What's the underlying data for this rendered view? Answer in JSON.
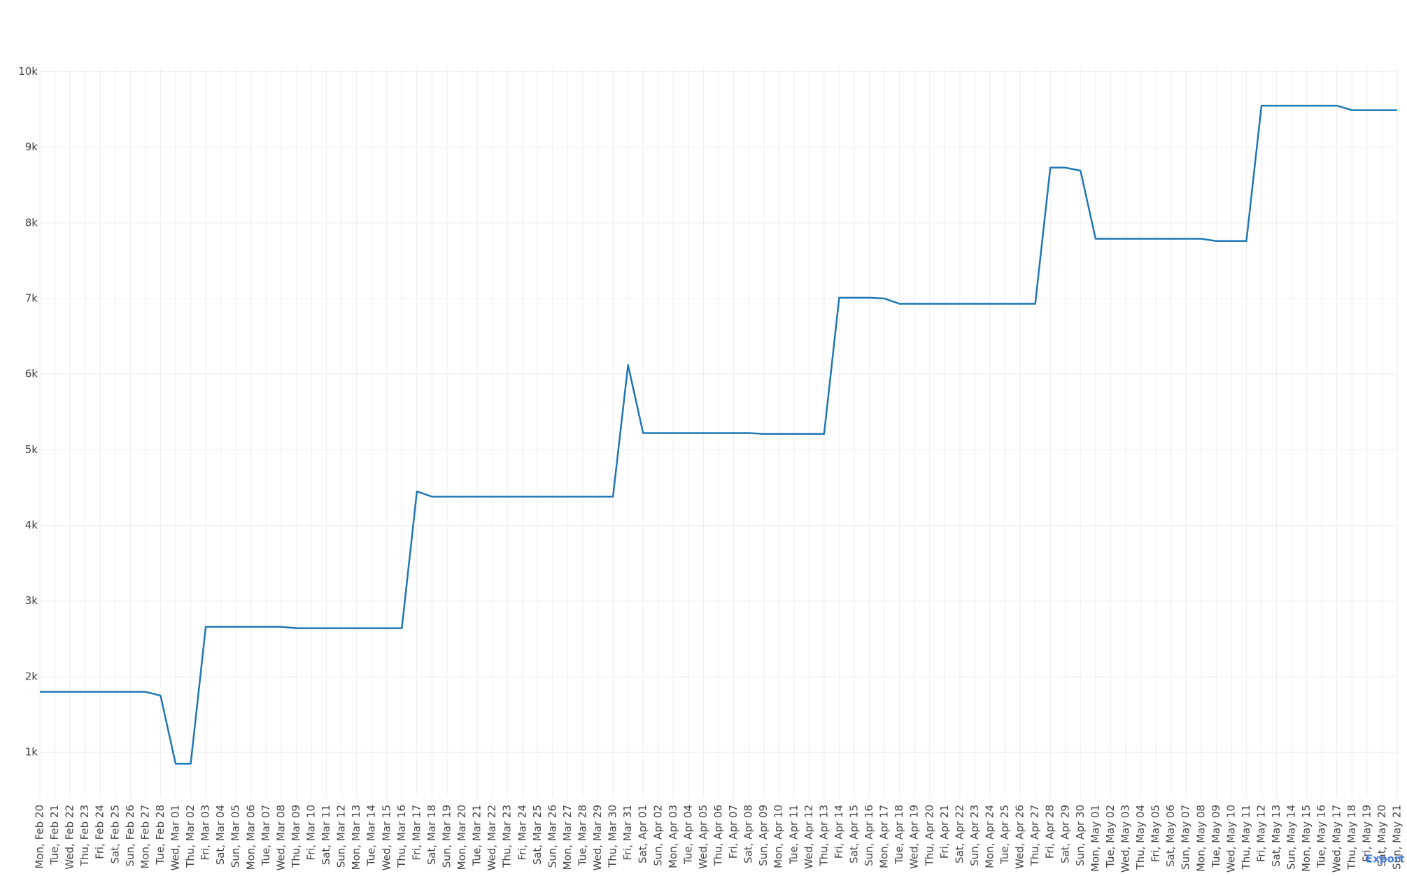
{
  "chart_data": {
    "type": "line",
    "categories": [
      "Mon, Feb 20",
      "Tue, Feb 21",
      "Wed, Feb 22",
      "Thu, Feb 23",
      "Fri, Feb 24",
      "Sat, Feb 25",
      "Sun, Feb 26",
      "Mon, Feb 27",
      "Tue, Feb 28",
      "Wed, Mar 01",
      "Thu, Mar 02",
      "Fri, Mar 03",
      "Sat, Mar 04",
      "Sun, Mar 05",
      "Mon, Mar 06",
      "Tue, Mar 07",
      "Wed, Mar 08",
      "Thu, Mar 09",
      "Fri, Mar 10",
      "Sat, Mar 11",
      "Sun, Mar 12",
      "Mon, Mar 13",
      "Tue, Mar 14",
      "Wed, Mar 15",
      "Thu, Mar 16",
      "Fri, Mar 17",
      "Sat, Mar 18",
      "Sun, Mar 19",
      "Mon, Mar 20",
      "Tue, Mar 21",
      "Wed, Mar 22",
      "Thu, Mar 23",
      "Fri, Mar 24",
      "Sat, Mar 25",
      "Sun, Mar 26",
      "Mon, Mar 27",
      "Tue, Mar 28",
      "Wed, Mar 29",
      "Thu, Mar 30",
      "Fri, Mar 31",
      "Sat, Apr 01",
      "Sun, Apr 02",
      "Mon, Apr 03",
      "Tue, Apr 04",
      "Wed, Apr 05",
      "Thu, Apr 06",
      "Fri, Apr 07",
      "Sat, Apr 08",
      "Sun, Apr 09",
      "Mon, Apr 10",
      "Tue, Apr 11",
      "Wed, Apr 12",
      "Thu, Apr 13",
      "Fri, Apr 14",
      "Sat, Apr 15",
      "Sun, Apr 16",
      "Mon, Apr 17",
      "Tue, Apr 18",
      "Wed, Apr 19",
      "Thu, Apr 20",
      "Fri, Apr 21",
      "Sat, Apr 22",
      "Sun, Apr 23",
      "Mon, Apr 24",
      "Tue, Apr 25",
      "Wed, Apr 26",
      "Thu, Apr 27",
      "Fri, Apr 28",
      "Sat, Apr 29",
      "Sun, Apr 30",
      "Mon, May 01",
      "Tue, May 02",
      "Wed, May 03",
      "Thu, May 04",
      "Fri, May 05",
      "Sat, May 06",
      "Sun, May 07",
      "Mon, May 08",
      "Tue, May 09",
      "Wed, May 10",
      "Thu, May 11",
      "Fri, May 12",
      "Sat, May 13",
      "Sun, May 14",
      "Mon, May 15",
      "Tue, May 16",
      "Wed, May 17",
      "Thu, May 18",
      "Fri, May 19",
      "Sat, May 20",
      "Sun, May 21"
    ],
    "values": [
      1800,
      1800,
      1800,
      1800,
      1800,
      1800,
      1800,
      1800,
      1750,
      850,
      850,
      2660,
      2660,
      2660,
      2660,
      2660,
      2660,
      2640,
      2640,
      2640,
      2640,
      2640,
      2640,
      2640,
      2640,
      4450,
      4380,
      4380,
      4380,
      4380,
      4380,
      4380,
      4380,
      4380,
      4380,
      4380,
      4380,
      4380,
      4380,
      6120,
      5220,
      5220,
      5220,
      5220,
      5220,
      5220,
      5220,
      5220,
      5210,
      5210,
      5210,
      5210,
      5210,
      7010,
      7010,
      7010,
      7000,
      6930,
      6930,
      6930,
      6930,
      6930,
      6930,
      6930,
      6930,
      6930,
      6930,
      8730,
      8730,
      8690,
      7790,
      7790,
      7790,
      7790,
      7790,
      7790,
      7790,
      7790,
      7760,
      7760,
      7760,
      9550,
      9550,
      9550,
      9550,
      9550,
      9550,
      9490,
      9490,
      9490,
      9490
    ],
    "color": "#1f77b4",
    "ylim": [
      400,
      10050
    ],
    "yticks": [
      {
        "value": 1000,
        "label": "1k"
      },
      {
        "value": 2000,
        "label": "2k"
      },
      {
        "value": 3000,
        "label": "3k"
      },
      {
        "value": 4000,
        "label": "4k"
      },
      {
        "value": 5000,
        "label": "5k"
      },
      {
        "value": 6000,
        "label": "6k"
      },
      {
        "value": 7000,
        "label": "7k"
      },
      {
        "value": 8000,
        "label": "8k"
      },
      {
        "value": 9000,
        "label": "9k"
      },
      {
        "value": 10000,
        "label": "10k"
      }
    ],
    "grid": true,
    "export_link": "Export"
  }
}
